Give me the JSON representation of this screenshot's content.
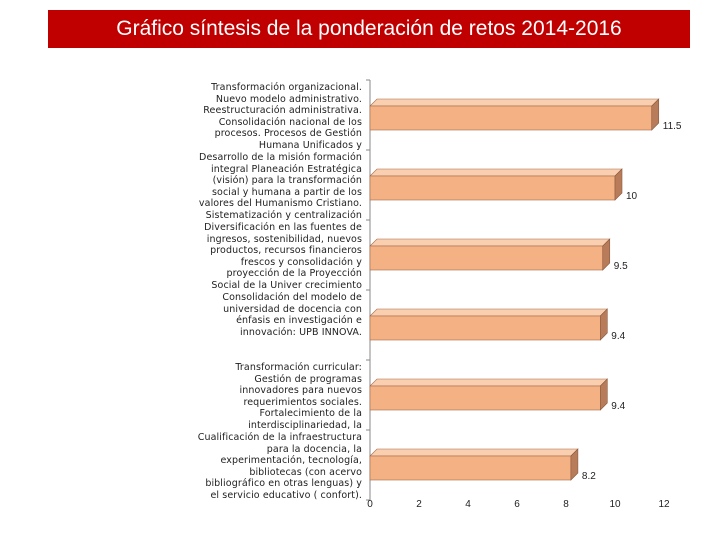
{
  "header": {
    "title": "Gráfico síntesis de la ponderación de retos 2014-2016"
  },
  "chart_data": {
    "type": "bar",
    "orientation": "horizontal",
    "title": "Gráfico síntesis de la ponderación de retos 2014-2016",
    "xlabel": "",
    "ylabel": "",
    "xlim": [
      0,
      12
    ],
    "x_ticks": [
      "0",
      "2",
      "4",
      "6",
      "8",
      "10",
      "12"
    ],
    "grid": false,
    "categories": [
      "Transformación organizacional. Nuevo modelo administrativo. Reestructuración administrativa. Consolidación nacional de los procesos. Procesos de Gestión Humana Unificados y Normalizados. Articulación de la institucionalidad",
      "Desarrollo de la misión formación integral Planeación Estratégica (visión) para la transformación social y humana a partir de los valores del Humanismo Cristiano. Sistematización y centralización",
      "Diversificación en las fuentes de ingresos, sostenibilidad, nuevos productos, recursos financieros frescos y consolidación y proyección de la Proyección Social de la Univer crecimiento patrimonial de la Universidad",
      "Consolidación del modelo de universidad de docencia con énfasis en investigación e innovación: UPB INNOVA.",
      "Transformación curricular: Gestión de programas innovadores para nuevos requerimientos sociales. Fortalecimiento de la interdisciplinariedad, la flexibilización y el afianzamiento del estudio independiente por parte de los estudiantes",
      "Cualificación de la infraestructura para la docencia, la experimentación, tecnología, bibliotecas (con acervo bibliográfico en otras lenguas) y el servicio educativo ( confort)."
    ],
    "values": [
      11.5,
      10,
      9.5,
      9.4,
      9.4,
      8.2
    ],
    "value_labels": [
      "11.5",
      "10",
      "9.5",
      "9.4",
      "9.4",
      "8.2"
    ],
    "colors": {
      "bar_fill": "#f4b183",
      "bar_side": "#b87c5a",
      "bar_top": "#f9cfb0",
      "axis": "#888888",
      "title_bg": "#c00000"
    },
    "legend": "none"
  }
}
